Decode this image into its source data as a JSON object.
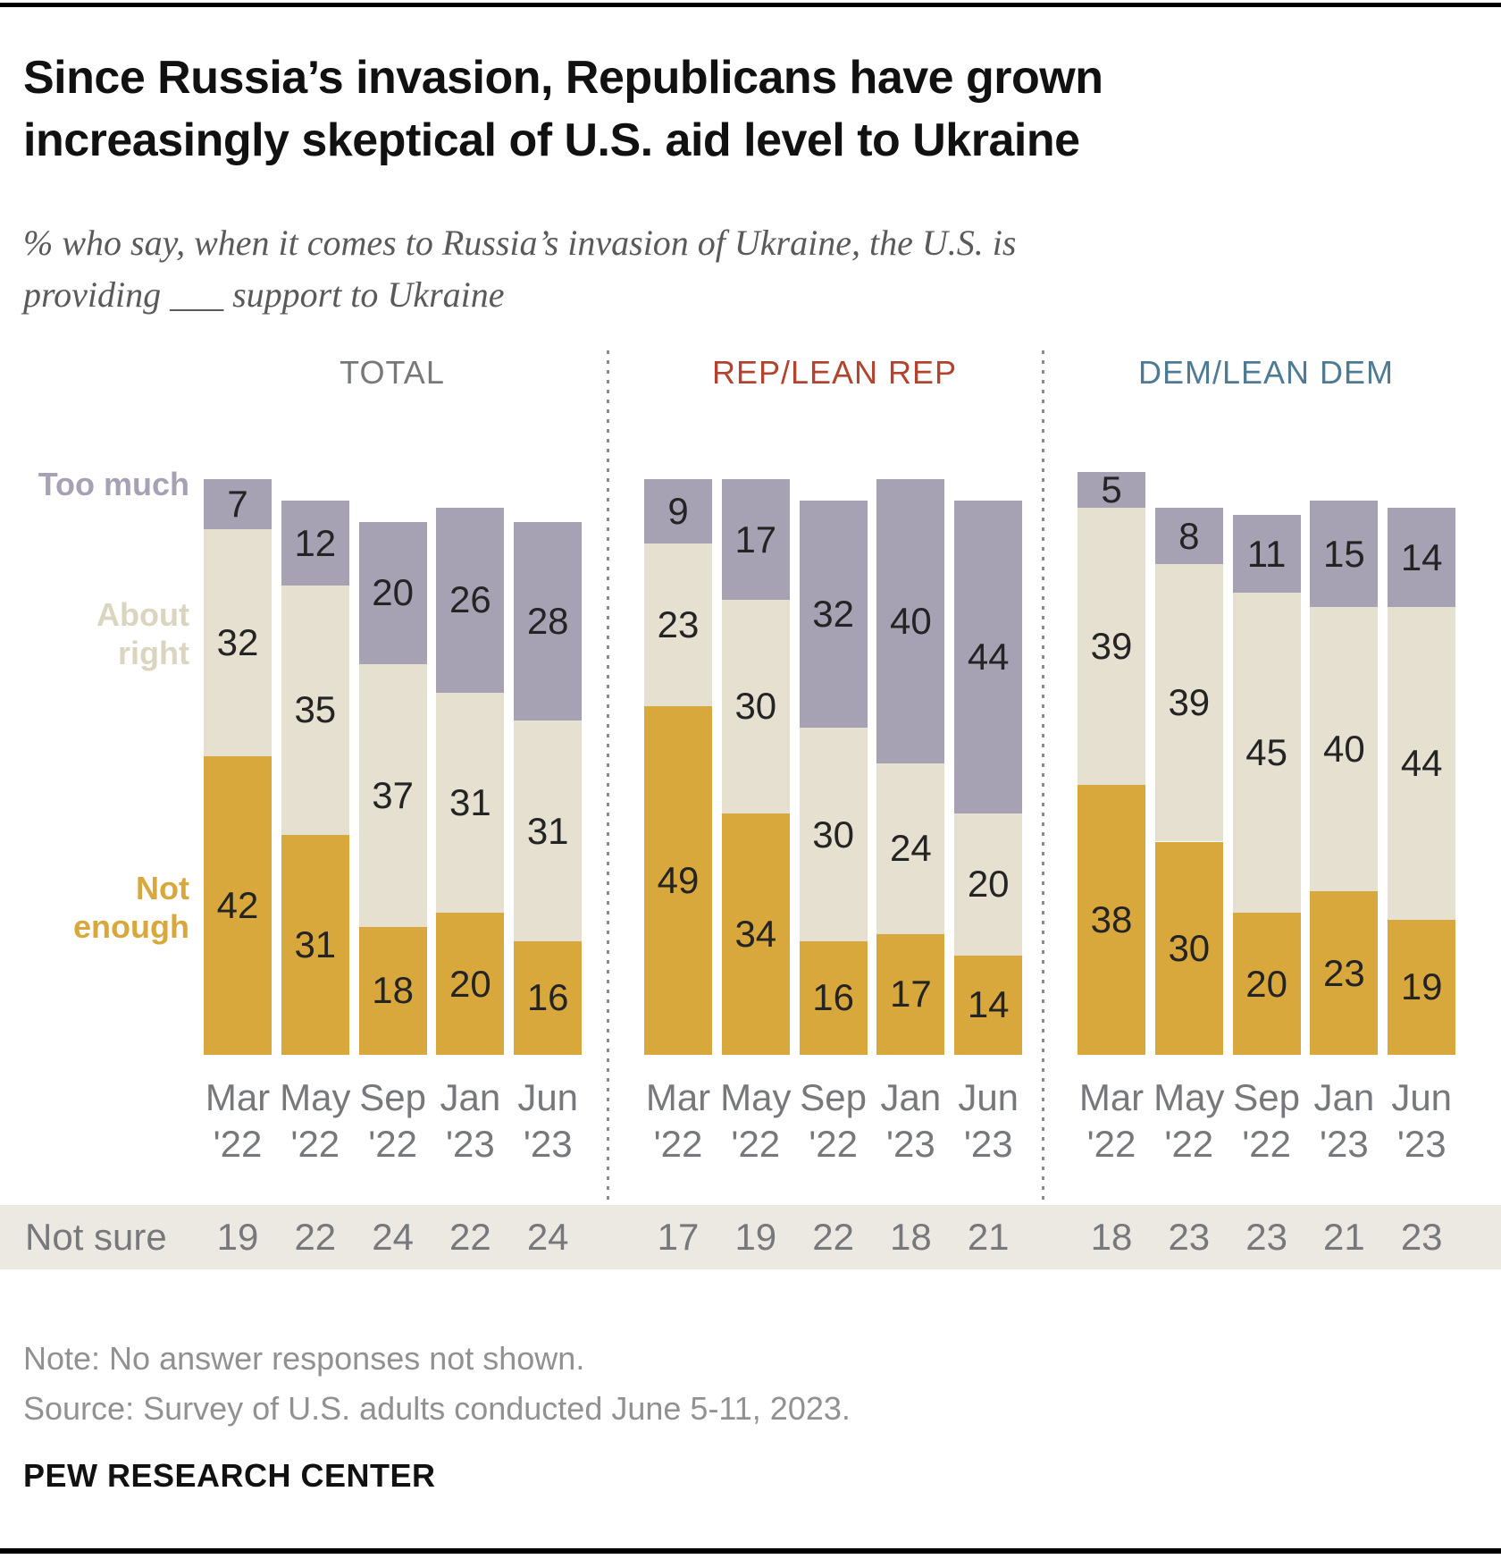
{
  "page": {
    "title_line1": "Since Russia’s invasion, Republicans have grown",
    "title_line2": "increasingly skeptical of U.S. aid level to Ukraine",
    "subtitle_line1": "% who say, when it comes to Russia’s invasion of Ukraine, the U.S. is",
    "subtitle_line2": "providing ___ support to Ukraine",
    "note": "Note: No answer responses not shown.",
    "source": "Source: Survey of U.S. adults conducted June 5-11, 2023.",
    "brand": "PEW RESEARCH CENTER"
  },
  "legend": {
    "too_much": "Too much",
    "about_right": "About right",
    "not_enough": "Not enough"
  },
  "not_sure_row_label": "Not sure",
  "colors": {
    "not_enough": "#D9A83C",
    "about_right": "#E5E0CF",
    "too_much": "#A7A1B4",
    "legend_about_right_text": "#DBD5C0",
    "not_sure_band": "#ECE9E2",
    "bar_number_text": "#242424",
    "gray_text": "#77787B",
    "rep_header": "#B2432F",
    "dem_header": "#4E7A93",
    "note_text": "#919191",
    "rule_black": "#000000"
  },
  "chart_data": {
    "type": "bar",
    "stacked": true,
    "orientation": "vertical",
    "value_unit": "%",
    "ylim": [
      0,
      100
    ],
    "categories": [
      "Mar '22",
      "May '22",
      "Sep '22",
      "Jan '23",
      "Jun '23"
    ],
    "segment_order_bottom_to_top": [
      "Not enough",
      "About right",
      "Too much"
    ],
    "panels": [
      {
        "label": "TOTAL",
        "header_color": "#77787B",
        "series": [
          {
            "name": "Not enough",
            "color": "#D9A83C",
            "values": [
              42,
              31,
              18,
              20,
              16
            ]
          },
          {
            "name": "About right",
            "color": "#E5E0CF",
            "values": [
              32,
              35,
              37,
              31,
              31
            ]
          },
          {
            "name": "Too much",
            "color": "#A7A1B4",
            "values": [
              7,
              12,
              20,
              26,
              28
            ]
          }
        ],
        "not_sure": [
          19,
          22,
          24,
          22,
          24
        ]
      },
      {
        "label": "REP/LEAN REP",
        "header_color": "#B2432F",
        "series": [
          {
            "name": "Not enough",
            "color": "#D9A83C",
            "values": [
              49,
              34,
              16,
              17,
              14
            ]
          },
          {
            "name": "About right",
            "color": "#E5E0CF",
            "values": [
              23,
              30,
              30,
              24,
              20
            ]
          },
          {
            "name": "Too much",
            "color": "#A7A1B4",
            "values": [
              9,
              17,
              32,
              40,
              44
            ]
          }
        ],
        "not_sure": [
          17,
          19,
          22,
          18,
          21
        ]
      },
      {
        "label": "DEM/LEAN DEM",
        "header_color": "#4E7A93",
        "series": [
          {
            "name": "Not enough",
            "color": "#D9A83C",
            "values": [
              38,
              30,
              20,
              23,
              19
            ]
          },
          {
            "name": "About right",
            "color": "#E5E0CF",
            "values": [
              39,
              39,
              45,
              40,
              44
            ]
          },
          {
            "name": "Too much",
            "color": "#A7A1B4",
            "values": [
              5,
              8,
              11,
              15,
              14
            ]
          }
        ],
        "not_sure": [
          18,
          23,
          23,
          21,
          23
        ]
      }
    ]
  }
}
